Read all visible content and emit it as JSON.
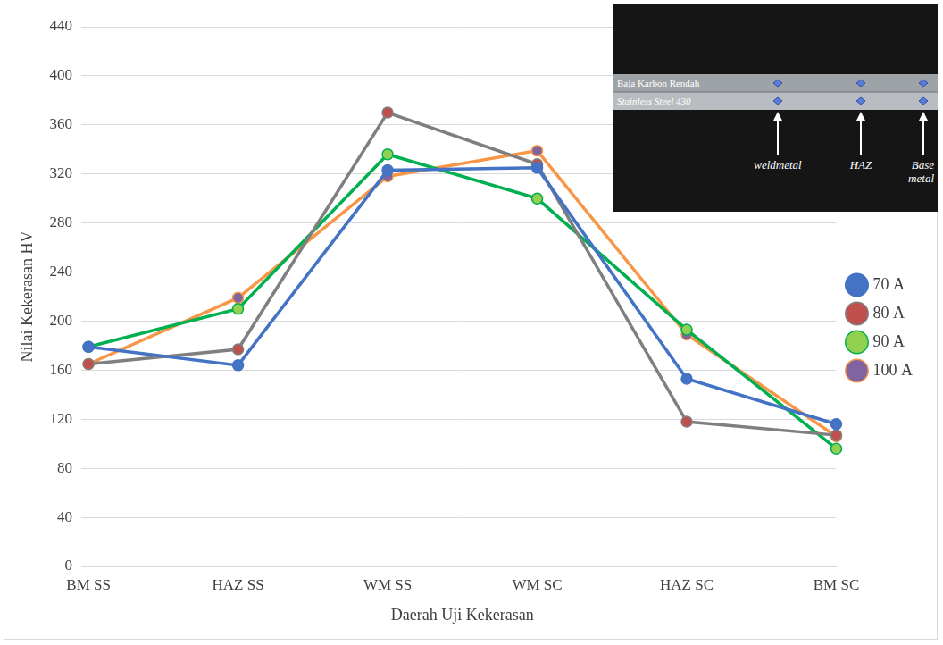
{
  "chart_data": {
    "type": "line",
    "x_label": "Daerah Uji Kekerasan",
    "y_label": "Nilai Kekerasan HV",
    "categories": [
      "BM SS",
      "HAZ SS",
      "WM SS",
      "WM SC",
      "HAZ SC",
      "BM SC"
    ],
    "series": [
      {
        "name": "70 A",
        "color": "#4472c4",
        "values": [
          179,
          164,
          323,
          325,
          153,
          116
        ]
      },
      {
        "name": "80 A",
        "color": "#7f7f7f",
        "values": [
          165,
          177,
          370,
          328,
          118,
          107
        ]
      },
      {
        "name": "90 A",
        "color": "#00b050",
        "values": [
          179,
          210,
          336,
          300,
          193,
          96
        ]
      },
      {
        "name": "100 A",
        "color": "#f79646",
        "values": [
          165,
          219,
          318,
          339,
          189,
          106
        ]
      }
    ],
    "ylim": [
      0,
      440
    ],
    "yticks": [
      0,
      40,
      80,
      120,
      160,
      200,
      240,
      280,
      320,
      360,
      400,
      440
    ],
    "grid": true,
    "legend": "right",
    "marker": "circle"
  },
  "inset": {
    "layers": [
      "Baja Karbon Rendah",
      "Stainless Steel 430"
    ],
    "labels": [
      "weldmetal",
      "HAZ",
      "Base metal"
    ]
  }
}
